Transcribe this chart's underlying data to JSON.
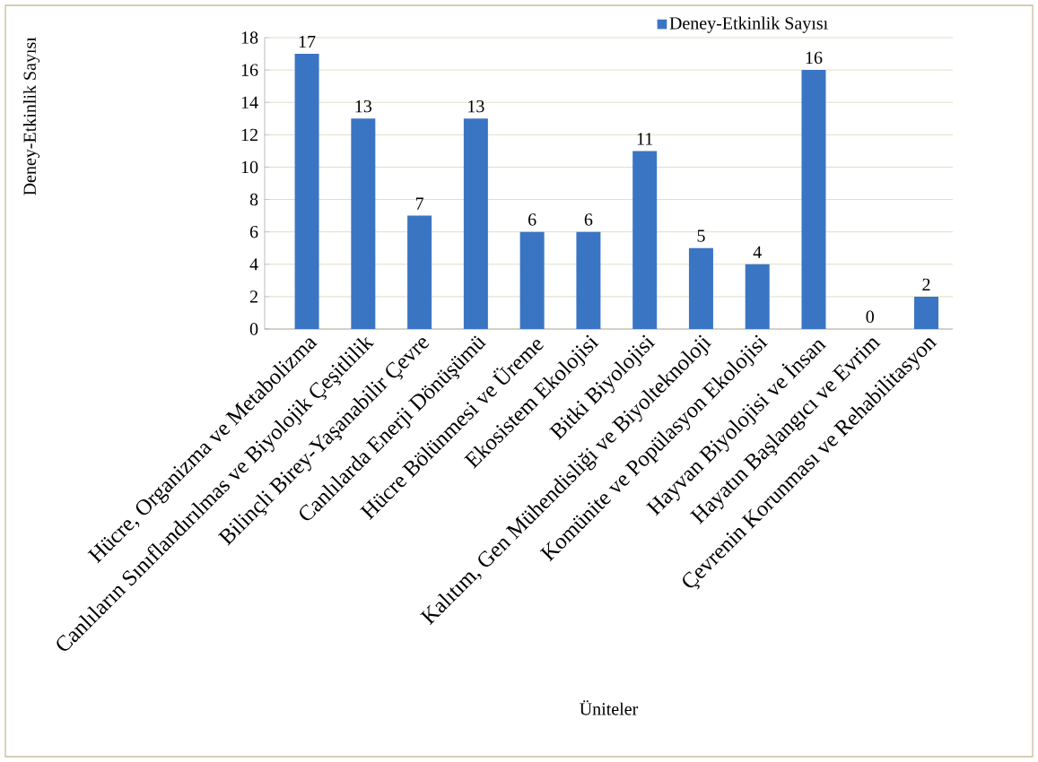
{
  "chart_data": {
    "type": "bar",
    "xlabel": "Üniteler",
    "ylabel": "Deney-Etkinlik Sayısı",
    "categories": [
      "Hücre, Organizma ve Metabolizma",
      "Canlıların Sınıflandırılmas ve Biyolojik Çeşitlilik",
      "Bilinçli Birey-Yaşanabilir Çevre",
      "Canlılarda Enerji Dönüşümü",
      "Hücre Bölünmesi ve Üreme",
      "Ekosistem Ekolojisi",
      "Bitki Biyolojisi",
      "Kalıtım, Gen Mühendisliği ve Biyolteknoloji",
      "Komünite ve Popülasyon Ekolojisi",
      "Hayvan Biyolojisi ve İnsan",
      "Hayatın Başlangıcı ve Evrim",
      "Çevrenin Korunması ve Rehabilitasyon"
    ],
    "series": [
      {
        "name": "Deney-Etkinlik Sayısı",
        "color": "#3a75c4",
        "values": [
          17,
          13,
          7,
          13,
          6,
          6,
          11,
          5,
          4,
          16,
          0,
          2
        ]
      }
    ],
    "ylim": [
      0,
      18
    ],
    "yticks": [
      0,
      2,
      4,
      6,
      8,
      10,
      12,
      14,
      16,
      18
    ],
    "grid": "y",
    "legend": "top right",
    "data_labels": true
  }
}
